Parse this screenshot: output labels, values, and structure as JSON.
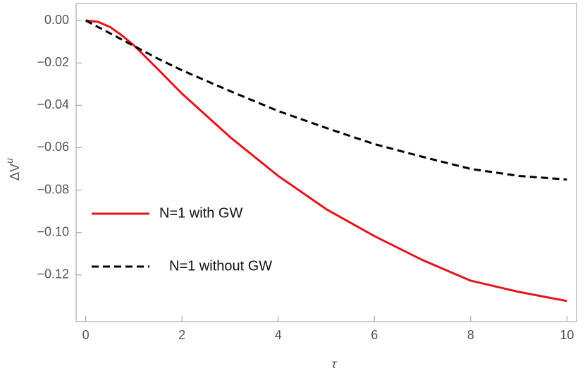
{
  "chart_data": {
    "type": "line",
    "xlabel": "τ",
    "ylabel": "ΔV",
    "ylabel_superscript": "u",
    "xlim": [
      -0.2,
      10.2
    ],
    "ylim": [
      -0.142,
      0.008
    ],
    "xticks": [
      0,
      2,
      4,
      6,
      8,
      10
    ],
    "yticks": [
      {
        "value": 0,
        "label": "0.00"
      },
      {
        "value": -0.02,
        "label": "−0.02"
      },
      {
        "value": -0.04,
        "label": "−0.04"
      },
      {
        "value": -0.06,
        "label": "−0.06"
      },
      {
        "value": -0.08,
        "label": "−0.08"
      },
      {
        "value": -0.1,
        "label": "−0.10"
      },
      {
        "value": -0.12,
        "label": "−0.12"
      }
    ],
    "grid": false,
    "legend_position": "left",
    "x": [
      0,
      0.25,
      0.5,
      0.75,
      1,
      1.5,
      2,
      3,
      4,
      5,
      6,
      7,
      8,
      9,
      10
    ],
    "series": [
      {
        "name": "N=1 with GW",
        "color": "#e3151a",
        "dash": "solid",
        "values": [
          0,
          -0.0006,
          -0.003,
          -0.007,
          -0.0117,
          -0.023,
          -0.0345,
          -0.055,
          -0.0733,
          -0.089,
          -0.1017,
          -0.113,
          -0.1227,
          -0.128,
          -0.1323
        ]
      },
      {
        "name": "N=1 without GW",
        "color": "#000000",
        "dash": "dashed",
        "values": [
          0,
          -0.003,
          -0.006,
          -0.009,
          -0.012,
          -0.018,
          -0.0235,
          -0.0333,
          -0.0427,
          -0.0507,
          -0.0583,
          -0.0643,
          -0.07,
          -0.0733,
          -0.075
        ]
      }
    ]
  }
}
